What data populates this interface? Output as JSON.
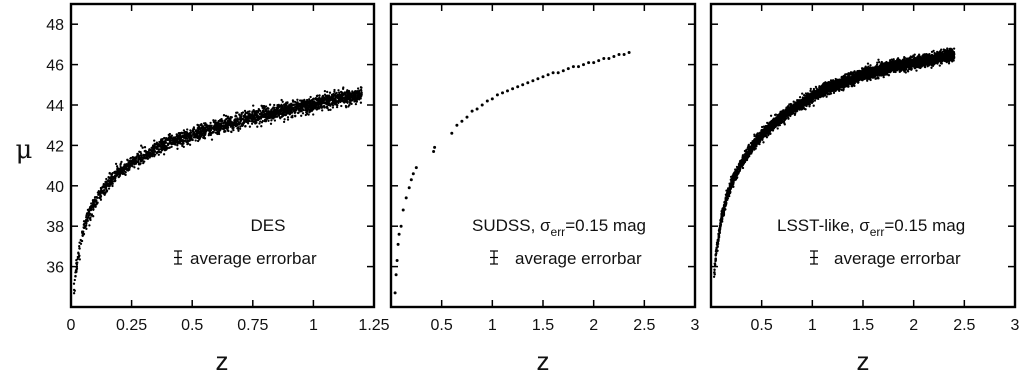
{
  "chart_data": [
    {
      "type": "scatter",
      "title": "",
      "xlabel": "z",
      "ylabel": "μ",
      "xlim": [
        0,
        1.25
      ],
      "ylim": [
        34,
        49
      ],
      "xticks": [
        "0",
        "0.25",
        "0.5",
        "0.75",
        "1",
        "1.25"
      ],
      "yticks": [
        "36",
        "38",
        "40",
        "42",
        "44",
        "46",
        "48"
      ],
      "annotations": [
        "DES",
        "average errorbar"
      ],
      "series": [
        {
          "x": [
            0.01,
            0.02,
            0.03,
            0.05,
            0.07,
            0.1,
            0.15,
            0.2,
            0.25,
            0.3,
            0.35,
            0.4,
            0.45,
            0.5,
            0.55,
            0.6,
            0.65,
            0.7,
            0.75,
            0.8,
            0.85,
            0.9,
            0.95,
            1.0,
            1.05,
            1.1,
            1.15,
            1.2
          ],
          "y": [
            34.3,
            35.8,
            36.6,
            37.8,
            38.5,
            39.2,
            40.1,
            40.7,
            41.1,
            41.5,
            41.8,
            42.1,
            42.3,
            42.5,
            42.7,
            42.9,
            43.1,
            43.2,
            43.4,
            43.5,
            43.7,
            43.8,
            43.9,
            44.0,
            44.2,
            44.3,
            44.4,
            44.5
          ],
          "scatter_sd": 0.18,
          "point_count": 2400
        }
      ]
    },
    {
      "type": "scatter",
      "title": "",
      "xlabel": "z",
      "ylabel": "",
      "xlim": [
        0,
        3
      ],
      "ylim": [
        34,
        49
      ],
      "xticks": [
        "0.5",
        "1",
        "1.5",
        "2",
        "2.5",
        "3"
      ],
      "yticks": [],
      "annotations": [
        "SUDSS, σ",
        "err",
        "=0.15 mag",
        "average errorbar"
      ],
      "series": [
        {
          "x": [
            0.04,
            0.05,
            0.06,
            0.07,
            0.08,
            0.1,
            0.12,
            0.15,
            0.18,
            0.2,
            0.22,
            0.25,
            0.42,
            0.43,
            0.6,
            0.65,
            0.7,
            0.75,
            0.8,
            0.85,
            0.9,
            0.95,
            1.0,
            1.05,
            1.1,
            1.15,
            1.2,
            1.25,
            1.3,
            1.35,
            1.4,
            1.45,
            1.5,
            1.55,
            1.6,
            1.65,
            1.7,
            1.75,
            1.8,
            1.85,
            1.9,
            1.95,
            2.0,
            2.05,
            2.1,
            2.15,
            2.2,
            2.25,
            2.3,
            2.35
          ],
          "y": [
            34.7,
            35.6,
            36.3,
            37.1,
            37.6,
            38.0,
            38.8,
            39.4,
            39.9,
            40.3,
            40.6,
            40.9,
            41.7,
            41.9,
            42.6,
            43.0,
            43.2,
            43.4,
            43.7,
            43.8,
            44.0,
            44.2,
            44.3,
            44.5,
            44.6,
            44.7,
            44.8,
            44.9,
            45.0,
            45.1,
            45.2,
            45.3,
            45.4,
            45.5,
            45.6,
            45.6,
            45.7,
            45.8,
            45.9,
            45.9,
            46.0,
            46.1,
            46.1,
            46.2,
            46.3,
            46.3,
            46.4,
            46.5,
            46.5,
            46.6
          ],
          "scatter_sd": 0.2
        }
      ]
    },
    {
      "type": "scatter",
      "title": "",
      "xlabel": "z",
      "ylabel": "",
      "xlim": [
        0,
        3
      ],
      "ylim": [
        34,
        49
      ],
      "xticks": [
        "0.5",
        "1",
        "1.5",
        "2",
        "2.5",
        "3"
      ],
      "yticks": [],
      "annotations": [
        "LSST-like, σ",
        "err",
        "=0.15 mag",
        "average errorbar"
      ],
      "series": [
        {
          "x": [
            0.03,
            0.05,
            0.08,
            0.1,
            0.15,
            0.2,
            0.3,
            0.4,
            0.5,
            0.6,
            0.7,
            0.8,
            0.9,
            1.0,
            1.1,
            1.2,
            1.3,
            1.4,
            1.5,
            1.6,
            1.7,
            1.8,
            1.9,
            2.0,
            2.1,
            2.2,
            2.3,
            2.4
          ],
          "y": [
            35.5,
            36.7,
            37.6,
            38.3,
            39.3,
            40.1,
            41.1,
            41.9,
            42.5,
            43.0,
            43.4,
            43.8,
            44.1,
            44.4,
            44.7,
            44.9,
            45.1,
            45.3,
            45.5,
            45.6,
            45.8,
            45.9,
            46.0,
            46.1,
            46.2,
            46.3,
            46.4,
            46.5
          ],
          "scatter_sd": 0.14,
          "point_count": 5200
        }
      ]
    }
  ]
}
